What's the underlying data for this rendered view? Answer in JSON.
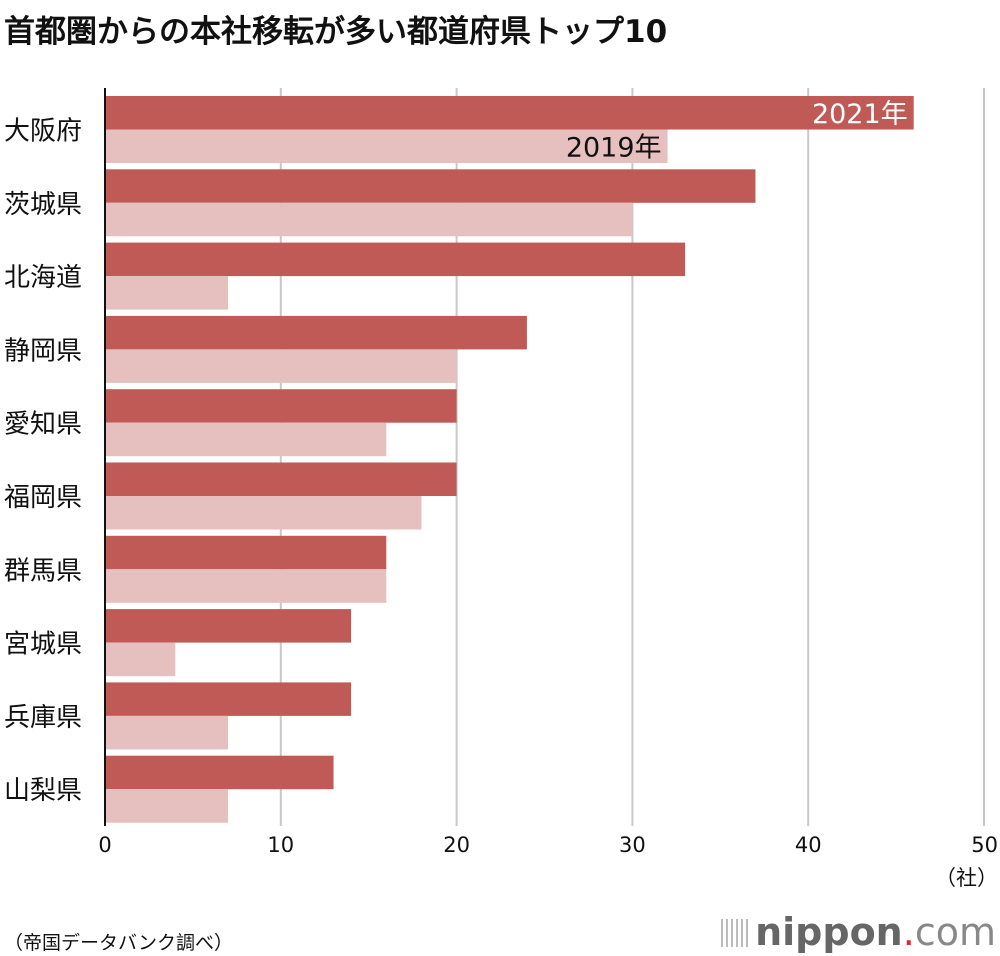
{
  "chart_data": {
    "type": "bar",
    "orientation": "horizontal",
    "title": "首都圏からの本社移転が多い都道府県トップ10",
    "categories": [
      "大阪府",
      "茨城県",
      "北海道",
      "静岡県",
      "愛知県",
      "福岡県",
      "群馬県",
      "宮城県",
      "兵庫県",
      "山梨県"
    ],
    "series": [
      {
        "name": "2021年",
        "color": "#c05a57",
        "values": [
          46,
          37,
          33,
          24,
          20,
          20,
          16,
          14,
          14,
          13
        ]
      },
      {
        "name": "2019年",
        "color": "#e6bfbf",
        "values": [
          32,
          30,
          7,
          20,
          16,
          18,
          16,
          4,
          7,
          7
        ]
      }
    ],
    "xlim": [
      0,
      50
    ],
    "xticks": [
      "0",
      "10",
      "20",
      "30",
      "40",
      "50"
    ],
    "xunit": "（社）",
    "grid": true,
    "legend_placement": "inline-on-first-bars"
  },
  "source": "（帝国データバンク調べ）",
  "logo": {
    "main": "nippon",
    "dot": ".",
    "tld": "com"
  }
}
